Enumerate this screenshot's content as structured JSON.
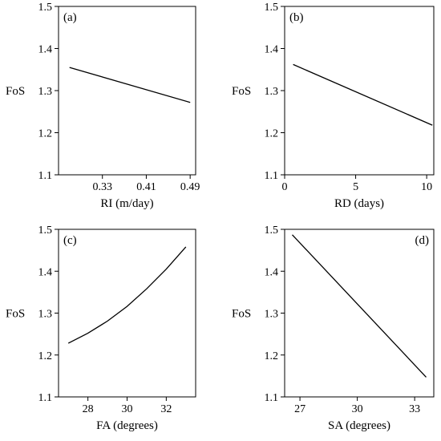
{
  "chart_data": [
    {
      "type": "line",
      "panel_label": "(a)",
      "xlabel": "RI (m/day)",
      "ylabel": "FoS",
      "xlim": [
        0.25,
        0.5
      ],
      "ylim": [
        1.1,
        1.5
      ],
      "xticks": [
        0.33,
        0.41,
        0.49
      ],
      "xtick_labels": [
        "0.33",
        "0.41",
        "0.49"
      ],
      "yticks": [
        1.1,
        1.2,
        1.3,
        1.4,
        1.5
      ],
      "ytick_labels": [
        "1.1",
        "1.2",
        "1.3",
        "1.4",
        "1.5"
      ],
      "label_pos": "top-left",
      "grid": false,
      "x": [
        0.27,
        0.49
      ],
      "y": [
        1.355,
        1.272
      ]
    },
    {
      "type": "line",
      "panel_label": "(b)",
      "xlabel": "RD (days)",
      "ylabel": "FoS",
      "xlim": [
        0,
        10.5
      ],
      "ylim": [
        1.1,
        1.5
      ],
      "xticks": [
        0,
        5,
        10
      ],
      "xtick_labels": [
        "0",
        "5",
        "10"
      ],
      "yticks": [
        1.1,
        1.2,
        1.3,
        1.4,
        1.5
      ],
      "ytick_labels": [
        "1.1",
        "1.2",
        "1.3",
        "1.4",
        "1.5"
      ],
      "label_pos": "top-left",
      "grid": false,
      "x": [
        0.6,
        10.4
      ],
      "y": [
        1.362,
        1.218
      ]
    },
    {
      "type": "line",
      "panel_label": "(c)",
      "xlabel": "FA (degrees)",
      "ylabel": "FoS",
      "xlim": [
        26.5,
        33.5
      ],
      "ylim": [
        1.1,
        1.5
      ],
      "xticks": [
        28,
        30,
        32
      ],
      "xtick_labels": [
        "28",
        "30",
        "32"
      ],
      "yticks": [
        1.1,
        1.2,
        1.3,
        1.4,
        1.5
      ],
      "ytick_labels": [
        "1.1",
        "1.2",
        "1.3",
        "1.4",
        "1.5"
      ],
      "label_pos": "top-left",
      "grid": false,
      "x": [
        27,
        28,
        29,
        30,
        31,
        32,
        33
      ],
      "y": [
        1.228,
        1.252,
        1.281,
        1.316,
        1.358,
        1.405,
        1.458
      ]
    },
    {
      "type": "line",
      "panel_label": "(d)",
      "xlabel": "SA (degrees)",
      "ylabel": "FoS",
      "xlim": [
        26.2,
        34
      ],
      "ylim": [
        1.1,
        1.5
      ],
      "xticks": [
        27,
        30,
        33
      ],
      "xtick_labels": [
        "27",
        "30",
        "33"
      ],
      "yticks": [
        1.1,
        1.2,
        1.3,
        1.4,
        1.5
      ],
      "ytick_labels": [
        "1.1",
        "1.2",
        "1.3",
        "1.4",
        "1.5"
      ],
      "label_pos": "top-right",
      "grid": false,
      "x": [
        26.6,
        33.6
      ],
      "y": [
        1.487,
        1.147
      ]
    }
  ]
}
